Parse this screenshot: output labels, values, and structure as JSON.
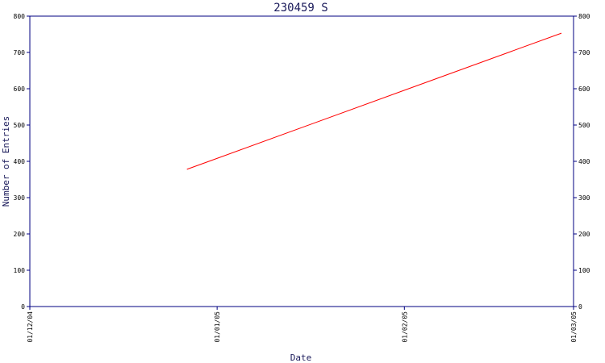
{
  "chart_data": {
    "type": "line",
    "title": "230459 S",
    "xlabel": "Date",
    "ylabel": "Number of Entries",
    "x_ticks": [
      "01/12/04",
      "01/01/05",
      "01/02/05",
      "01/03/05"
    ],
    "ylim": [
      0,
      800
    ],
    "y_ticks": [
      0,
      100,
      200,
      300,
      400,
      500,
      600,
      700,
      800
    ],
    "grid": false,
    "series": [
      {
        "color": "#ff0000",
        "x": [
          "2004-12-27",
          "2005-02-27"
        ],
        "y": [
          378,
          753
        ]
      }
    ],
    "frame_color": "#000080"
  }
}
